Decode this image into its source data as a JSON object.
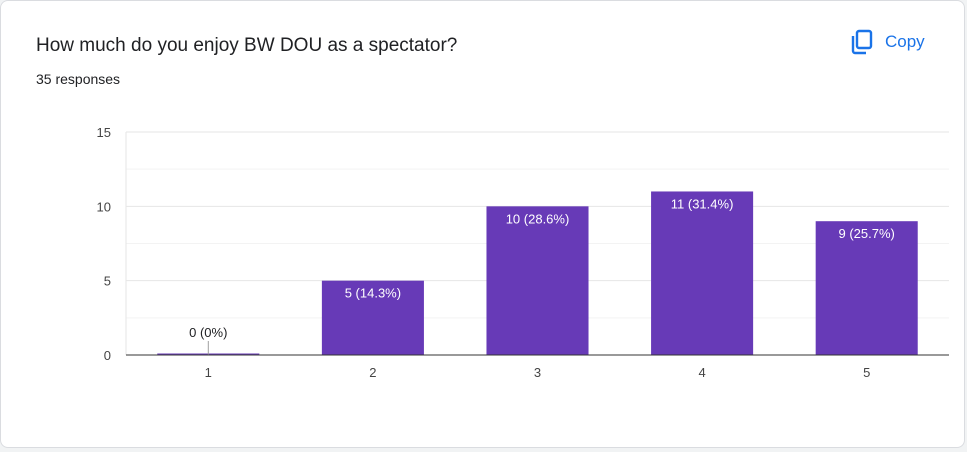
{
  "header": {
    "title": "How much do you enjoy BW DOU as a spectator?",
    "responses": "35 responses",
    "copy_label": "Copy",
    "copy_icon": "copy-icon",
    "accent": "#1a73e8"
  },
  "chart_data": {
    "type": "bar",
    "categories": [
      "1",
      "2",
      "3",
      "4",
      "5"
    ],
    "values": [
      0,
      5,
      10,
      11,
      9
    ],
    "data_labels": [
      "0 (0%)",
      "5 (14.3%)",
      "10 (28.6%)",
      "11 (31.4%)",
      "9 (25.7%)"
    ],
    "title": "How much do you enjoy BW DOU as a spectator?",
    "xlabel": "",
    "ylabel": "",
    "ylim": [
      0,
      15
    ],
    "yticks": [
      0,
      5,
      10,
      15
    ],
    "grid": true,
    "bar_color": "#673ab7"
  }
}
